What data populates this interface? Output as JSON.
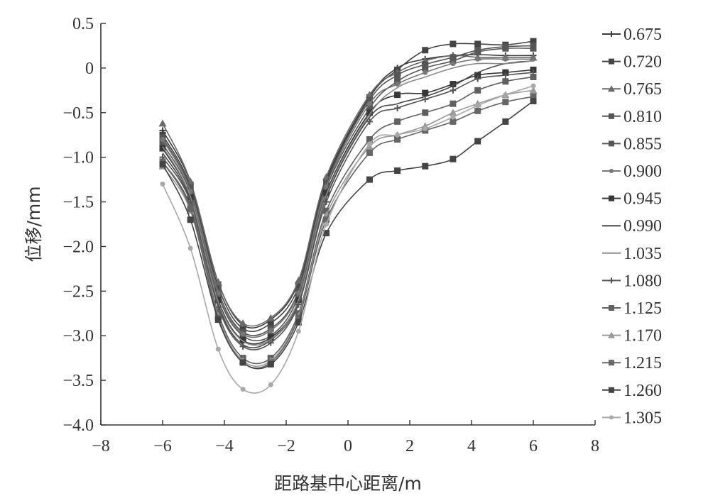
{
  "chart_data": {
    "type": "line",
    "title": "",
    "xlabel": "距路基中心距离/m",
    "ylabel": "位移/mm",
    "xlim": [
      -8,
      8
    ],
    "ylim": [
      -4.0,
      0.5
    ],
    "x_ticks": [
      "−8",
      "−6",
      "−4",
      "−2",
      "0",
      "2",
      "4",
      "6",
      "8"
    ],
    "y_ticks": [
      "0.5",
      "0",
      "−0.5",
      "−1.0",
      "−1.5",
      "−2.0",
      "−2.5",
      "−3.0",
      "−3.5",
      "−4.0"
    ],
    "grid": false,
    "legend_position": "right",
    "x": [
      -6,
      -5.1,
      -4.2,
      -3.4,
      -2.5,
      -1.6,
      -0.7,
      0.7,
      1.6,
      2.5,
      3.4,
      4.2,
      5.1,
      6.0
    ],
    "series": [
      {
        "name": "0.675",
        "color": "#3a3a3a",
        "marker": "plus",
        "values": [
          -0.7,
          -1.28,
          -2.4,
          -2.88,
          -2.82,
          -2.4,
          -1.25,
          -0.32,
          0.0,
          0.1,
          0.14,
          0.15,
          0.14,
          0.14
        ]
      },
      {
        "name": "0.720",
        "color": "#444444",
        "marker": "square",
        "values": [
          -0.75,
          -1.32,
          -2.45,
          -2.92,
          -2.86,
          -2.45,
          -1.28,
          -0.33,
          -0.02,
          0.2,
          0.27,
          0.27,
          0.26,
          0.3
        ]
      },
      {
        "name": "0.765",
        "color": "#6a6a6a",
        "marker": "tri",
        "values": [
          -0.62,
          -1.27,
          -2.4,
          -2.86,
          -2.8,
          -2.38,
          -1.22,
          -0.3,
          -0.05,
          0.08,
          0.14,
          0.12,
          0.12,
          0.12
        ]
      },
      {
        "name": "0.810",
        "color": "#555555",
        "marker": "square",
        "values": [
          -0.78,
          -1.35,
          -2.5,
          -2.96,
          -2.92,
          -2.5,
          -1.3,
          -0.36,
          -0.08,
          0.04,
          0.12,
          0.2,
          0.24,
          0.25
        ]
      },
      {
        "name": "0.855",
        "color": "#575757",
        "marker": "square",
        "values": [
          -0.85,
          -1.4,
          -2.55,
          -3.0,
          -3.0,
          -2.55,
          -1.35,
          -0.45,
          -0.15,
          0.0,
          0.08,
          0.18,
          0.22,
          0.22
        ]
      },
      {
        "name": "0.900",
        "color": "#777777",
        "marker": "dot",
        "values": [
          -0.8,
          -1.38,
          -2.52,
          -2.98,
          -2.94,
          -2.52,
          -1.33,
          -0.4,
          -0.18,
          -0.05,
          0.05,
          0.1,
          0.1,
          0.1
        ]
      },
      {
        "name": "0.945",
        "color": "#383838",
        "marker": "square",
        "values": [
          -0.9,
          -1.45,
          -2.6,
          -3.05,
          -3.02,
          -2.6,
          -1.4,
          -0.5,
          -0.3,
          -0.28,
          -0.18,
          -0.08,
          -0.05,
          -0.02
        ]
      },
      {
        "name": "0.990",
        "color": "#4a4a4a",
        "marker": "none",
        "values": [
          -0.95,
          -1.48,
          -2.65,
          -3.1,
          -3.05,
          -2.62,
          -1.45,
          -0.55,
          -0.4,
          -0.32,
          -0.2,
          -0.05,
          0.05,
          0.08
        ]
      },
      {
        "name": "1.035",
        "color": "#8a8a8a",
        "marker": "none",
        "values": [
          -0.88,
          -1.44,
          -2.62,
          -3.06,
          -3.04,
          -2.6,
          -1.42,
          -0.52,
          -0.22,
          -0.1,
          0.0,
          0.05,
          0.05,
          0.08
        ]
      },
      {
        "name": "1.080",
        "color": "#555555",
        "marker": "plus",
        "values": [
          -1.0,
          -1.5,
          -2.68,
          -3.12,
          -3.08,
          -2.65,
          -1.5,
          -0.6,
          -0.45,
          -0.35,
          -0.25,
          -0.12,
          -0.08,
          -0.05
        ]
      },
      {
        "name": "1.125",
        "color": "#606060",
        "marker": "square",
        "values": [
          -1.05,
          -1.55,
          -2.75,
          -3.25,
          -3.25,
          -2.75,
          -1.6,
          -0.8,
          -0.6,
          -0.5,
          -0.4,
          -0.25,
          -0.15,
          -0.1
        ]
      },
      {
        "name": "1.170",
        "color": "#9a9a9a",
        "marker": "tri",
        "values": [
          -1.1,
          -1.6,
          -2.78,
          -3.28,
          -3.28,
          -2.78,
          -1.65,
          -0.88,
          -0.75,
          -0.65,
          -0.5,
          -0.4,
          -0.3,
          -0.25
        ]
      },
      {
        "name": "1.215",
        "color": "#666666",
        "marker": "square",
        "values": [
          -1.05,
          -1.58,
          -2.8,
          -3.3,
          -3.3,
          -2.8,
          -1.7,
          -0.95,
          -0.8,
          -0.7,
          -0.6,
          -0.48,
          -0.38,
          -0.32
        ]
      },
      {
        "name": "1.260",
        "color": "#444444",
        "marker": "square",
        "values": [
          -1.08,
          -1.7,
          -2.82,
          -3.3,
          -3.32,
          -2.85,
          -1.85,
          -1.25,
          -1.15,
          -1.1,
          -1.02,
          -0.82,
          -0.6,
          -0.37
        ]
      },
      {
        "name": "1.305",
        "color": "#a8a8a8",
        "marker": "dot",
        "values": [
          -1.3,
          -2.02,
          -3.15,
          -3.6,
          -3.55,
          -2.95,
          -1.75,
          -0.85,
          -0.75,
          -0.68,
          -0.55,
          -0.42,
          -0.3,
          -0.2
        ]
      }
    ]
  }
}
